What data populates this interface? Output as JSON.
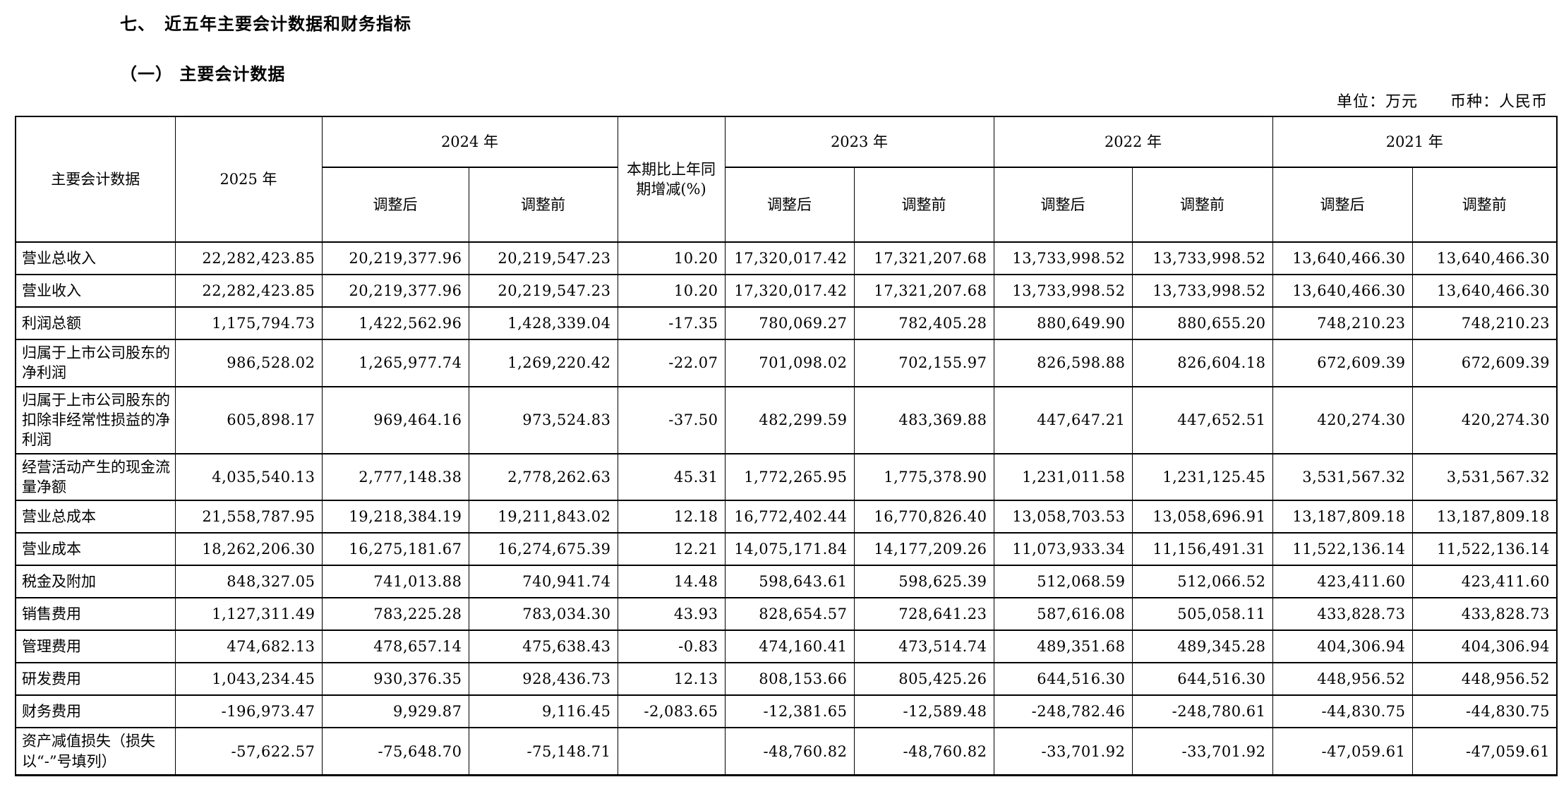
{
  "page": {
    "section_title": "七、　近五年主要会计数据和财务指标",
    "subsection_title": "（一） 主要会计数据",
    "unit_note": "单位：万元　　币种：人民币"
  },
  "table": {
    "header": {
      "metric": "主要会计数据",
      "year_2025": "2025 年",
      "year_2024": "2024 年",
      "change": "本期比上年同期增减(%)",
      "year_2023": "2023 年",
      "year_2022": "2022 年",
      "year_2021": "2021 年",
      "adjusted": "调整后",
      "pre_adjusted": "调整前"
    },
    "rows": [
      {
        "label": "营业总收入",
        "y2025": "22,282,423.85",
        "y2024_after": "20,219,377.96",
        "y2024_before": "20,219,547.23",
        "change": "10.20",
        "y2023_after": "17,320,017.42",
        "y2023_before": "17,321,207.68",
        "y2022_after": "13,733,998.52",
        "y2022_before": "13,733,998.52",
        "y2021_after": "13,640,466.30",
        "y2021_before": "13,640,466.30"
      },
      {
        "label": "营业收入",
        "y2025": "22,282,423.85",
        "y2024_after": "20,219,377.96",
        "y2024_before": "20,219,547.23",
        "change": "10.20",
        "y2023_after": "17,320,017.42",
        "y2023_before": "17,321,207.68",
        "y2022_after": "13,733,998.52",
        "y2022_before": "13,733,998.52",
        "y2021_after": "13,640,466.30",
        "y2021_before": "13,640,466.30"
      },
      {
        "label": "利润总额",
        "y2025": "1,175,794.73",
        "y2024_after": "1,422,562.96",
        "y2024_before": "1,428,339.04",
        "change": "-17.35",
        "y2023_after": "780,069.27",
        "y2023_before": "782,405.28",
        "y2022_after": "880,649.90",
        "y2022_before": "880,655.20",
        "y2021_after": "748,210.23",
        "y2021_before": "748,210.23"
      },
      {
        "label": "归属于上市公司股东的净利润",
        "y2025": "986,528.02",
        "y2024_after": "1,265,977.74",
        "y2024_before": "1,269,220.42",
        "change": "-22.07",
        "y2023_after": "701,098.02",
        "y2023_before": "702,155.97",
        "y2022_after": "826,598.88",
        "y2022_before": "826,604.18",
        "y2021_after": "672,609.39",
        "y2021_before": "672,609.39"
      },
      {
        "label": "归属于上市公司股东的扣除非经常性损益的净利润",
        "y2025": "605,898.17",
        "y2024_after": "969,464.16",
        "y2024_before": "973,524.83",
        "change": "-37.50",
        "y2023_after": "482,299.59",
        "y2023_before": "483,369.88",
        "y2022_after": "447,647.21",
        "y2022_before": "447,652.51",
        "y2021_after": "420,274.30",
        "y2021_before": "420,274.30"
      },
      {
        "label": "经营活动产生的现金流量净额",
        "y2025": "4,035,540.13",
        "y2024_after": "2,777,148.38",
        "y2024_before": "2,778,262.63",
        "change": "45.31",
        "y2023_after": "1,772,265.95",
        "y2023_before": "1,775,378.90",
        "y2022_after": "1,231,011.58",
        "y2022_before": "1,231,125.45",
        "y2021_after": "3,531,567.32",
        "y2021_before": "3,531,567.32"
      },
      {
        "label": "营业总成本",
        "y2025": "21,558,787.95",
        "y2024_after": "19,218,384.19",
        "y2024_before": "19,211,843.02",
        "change": "12.18",
        "y2023_after": "16,772,402.44",
        "y2023_before": "16,770,826.40",
        "y2022_after": "13,058,703.53",
        "y2022_before": "13,058,696.91",
        "y2021_after": "13,187,809.18",
        "y2021_before": "13,187,809.18"
      },
      {
        "label": "营业成本",
        "y2025": "18,262,206.30",
        "y2024_after": "16,275,181.67",
        "y2024_before": "16,274,675.39",
        "change": "12.21",
        "y2023_after": "14,075,171.84",
        "y2023_before": "14,177,209.26",
        "y2022_after": "11,073,933.34",
        "y2022_before": "11,156,491.31",
        "y2021_after": "11,522,136.14",
        "y2021_before": "11,522,136.14"
      },
      {
        "label": "税金及附加",
        "y2025": "848,327.05",
        "y2024_after": "741,013.88",
        "y2024_before": "740,941.74",
        "change": "14.48",
        "y2023_after": "598,643.61",
        "y2023_before": "598,625.39",
        "y2022_after": "512,068.59",
        "y2022_before": "512,066.52",
        "y2021_after": "423,411.60",
        "y2021_before": "423,411.60"
      },
      {
        "label": "销售费用",
        "y2025": "1,127,311.49",
        "y2024_after": "783,225.28",
        "y2024_before": "783,034.30",
        "change": "43.93",
        "y2023_after": "828,654.57",
        "y2023_before": "728,641.23",
        "y2022_after": "587,616.08",
        "y2022_before": "505,058.11",
        "y2021_after": "433,828.73",
        "y2021_before": "433,828.73"
      },
      {
        "label": "管理费用",
        "y2025": "474,682.13",
        "y2024_after": "478,657.14",
        "y2024_before": "475,638.43",
        "change": "-0.83",
        "y2023_after": "474,160.41",
        "y2023_before": "473,514.74",
        "y2022_after": "489,351.68",
        "y2022_before": "489,345.28",
        "y2021_after": "404,306.94",
        "y2021_before": "404,306.94"
      },
      {
        "label": "研发费用",
        "y2025": "1,043,234.45",
        "y2024_after": "930,376.35",
        "y2024_before": "928,436.73",
        "change": "12.13",
        "y2023_after": "808,153.66",
        "y2023_before": "805,425.26",
        "y2022_after": "644,516.30",
        "y2022_before": "644,516.30",
        "y2021_after": "448,956.52",
        "y2021_before": "448,956.52"
      },
      {
        "label": "财务费用",
        "y2025": "-196,973.47",
        "y2024_after": "9,929.87",
        "y2024_before": "9,116.45",
        "change": "-2,083.65",
        "y2023_after": "-12,381.65",
        "y2023_before": "-12,589.48",
        "y2022_after": "-248,782.46",
        "y2022_before": "-248,780.61",
        "y2021_after": "-44,830.75",
        "y2021_before": "-44,830.75"
      },
      {
        "label": "资产减值损失（损失以“-”号填列）",
        "y2025": "-57,622.57",
        "y2024_after": "-75,648.70",
        "y2024_before": "-75,148.71",
        "change": "",
        "y2023_after": "-48,760.82",
        "y2023_before": "-48,760.82",
        "y2022_after": "-33,701.92",
        "y2022_before": "-33,701.92",
        "y2021_after": "-47,059.61",
        "y2021_before": "-47,059.61"
      }
    ]
  }
}
